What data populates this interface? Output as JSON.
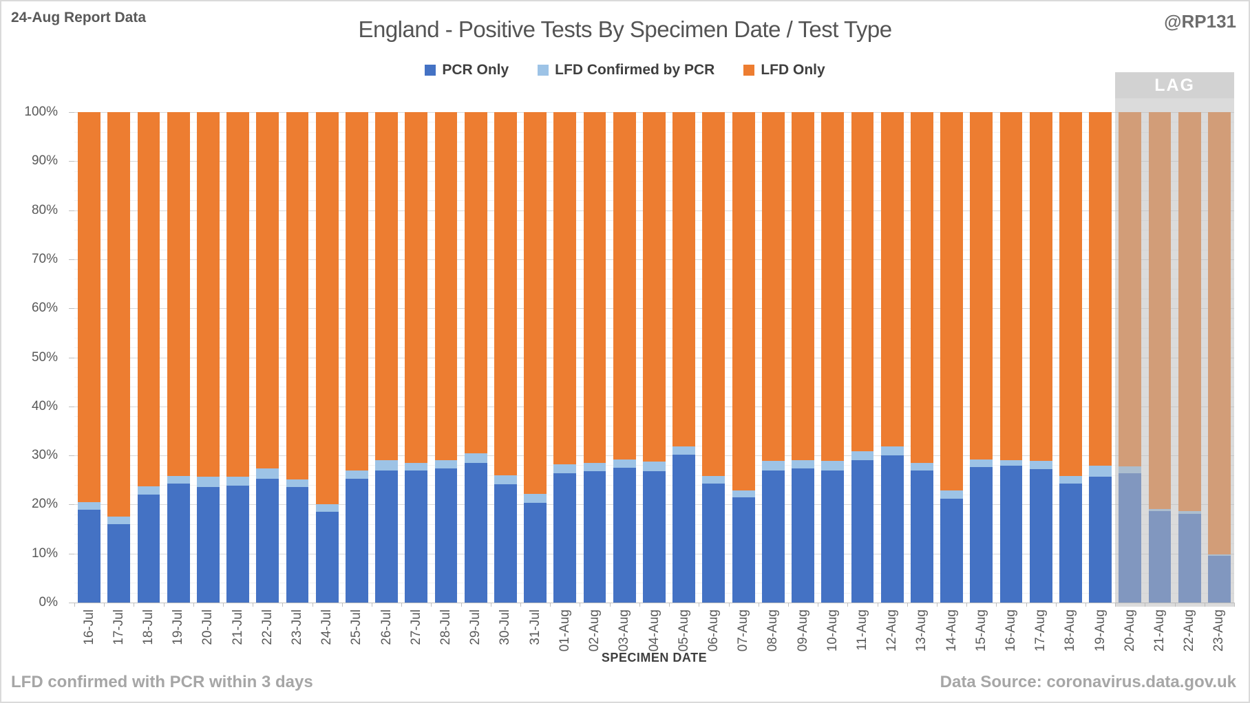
{
  "header": {
    "report_label": "24-Aug Report Data",
    "title": "England - Positive Tests By Specimen Date / Test Type",
    "handle": "@RP131"
  },
  "legend": [
    {
      "label": "PCR Only",
      "color": "#4472C4"
    },
    {
      "label": "LFD Confirmed by PCR",
      "color": "#9DC3E6"
    },
    {
      "label": "LFD Only",
      "color": "#ED7D31"
    }
  ],
  "lag": {
    "label": "LAG",
    "categories": [
      "20-Aug",
      "21-Aug",
      "22-Aug",
      "23-Aug"
    ]
  },
  "footer": {
    "note": "LFD confirmed with PCR within 3 days",
    "x_axis_title": "SPECIMEN DATE",
    "source": "Data Source: coronavirus.data.gov.uk"
  },
  "chart_data": {
    "type": "bar",
    "stacked": true,
    "units": "percent",
    "title": "England - Positive Tests By Specimen Date / Test Type",
    "xlabel": "SPECIMEN DATE",
    "ylabel": "",
    "ylim": [
      0,
      100
    ],
    "y_ticks": [
      "0%",
      "10%",
      "20%",
      "30%",
      "40%",
      "50%",
      "60%",
      "70%",
      "80%",
      "90%",
      "100%"
    ],
    "grid": {
      "major_step": 10,
      "minor_step": 2
    },
    "legend_position": "top",
    "categories": [
      "16-Jul",
      "17-Jul",
      "18-Jul",
      "19-Jul",
      "20-Jul",
      "21-Jul",
      "22-Jul",
      "23-Jul",
      "24-Jul",
      "25-Jul",
      "26-Jul",
      "27-Jul",
      "28-Jul",
      "29-Jul",
      "30-Jul",
      "31-Jul",
      "01-Aug",
      "02-Aug",
      "03-Aug",
      "04-Aug",
      "05-Aug",
      "06-Aug",
      "07-Aug",
      "08-Aug",
      "09-Aug",
      "10-Aug",
      "11-Aug",
      "12-Aug",
      "13-Aug",
      "14-Aug",
      "15-Aug",
      "16-Aug",
      "17-Aug",
      "18-Aug",
      "19-Aug",
      "20-Aug",
      "21-Aug",
      "22-Aug",
      "23-Aug"
    ],
    "series": [
      {
        "name": "PCR Only",
        "color": "#4472C4",
        "values": [
          19.0,
          16.0,
          22.0,
          24.3,
          23.6,
          23.9,
          25.3,
          23.6,
          18.5,
          25.3,
          26.9,
          27.0,
          27.4,
          28.5,
          24.1,
          20.4,
          26.4,
          26.8,
          27.5,
          26.8,
          30.2,
          24.3,
          21.4,
          26.9,
          27.4,
          27.0,
          29.0,
          30.0,
          26.9,
          21.2,
          27.6,
          27.9,
          27.2,
          24.3,
          25.7,
          26.3,
          18.7,
          18.1,
          9.6
        ]
      },
      {
        "name": "LFD Confirmed by PCR",
        "color": "#9DC3E6",
        "values": [
          1.5,
          1.6,
          1.7,
          1.5,
          2.1,
          1.8,
          2.1,
          1.5,
          1.6,
          1.7,
          2.2,
          1.5,
          1.6,
          2.0,
          1.9,
          1.7,
          1.8,
          1.7,
          1.7,
          2.0,
          1.7,
          1.5,
          1.5,
          2.0,
          1.7,
          1.9,
          1.8,
          1.8,
          1.6,
          1.6,
          1.6,
          1.2,
          1.7,
          1.5,
          2.2,
          1.5,
          0.4,
          0.5,
          0.2
        ]
      },
      {
        "name": "LFD Only",
        "color": "#ED7D31",
        "values": [
          79.5,
          82.4,
          76.3,
          74.2,
          74.3,
          74.3,
          72.6,
          74.9,
          79.9,
          73.0,
          70.9,
          71.5,
          71.0,
          69.5,
          74.0,
          77.9,
          71.8,
          71.5,
          70.8,
          71.2,
          68.1,
          74.2,
          77.1,
          71.1,
          70.9,
          71.1,
          69.2,
          68.2,
          71.5,
          77.2,
          70.8,
          70.9,
          71.1,
          74.2,
          72.1,
          72.2,
          80.9,
          81.4,
          90.2
        ]
      }
    ],
    "lag_categories": [
      "20-Aug",
      "21-Aug",
      "22-Aug",
      "23-Aug"
    ]
  }
}
